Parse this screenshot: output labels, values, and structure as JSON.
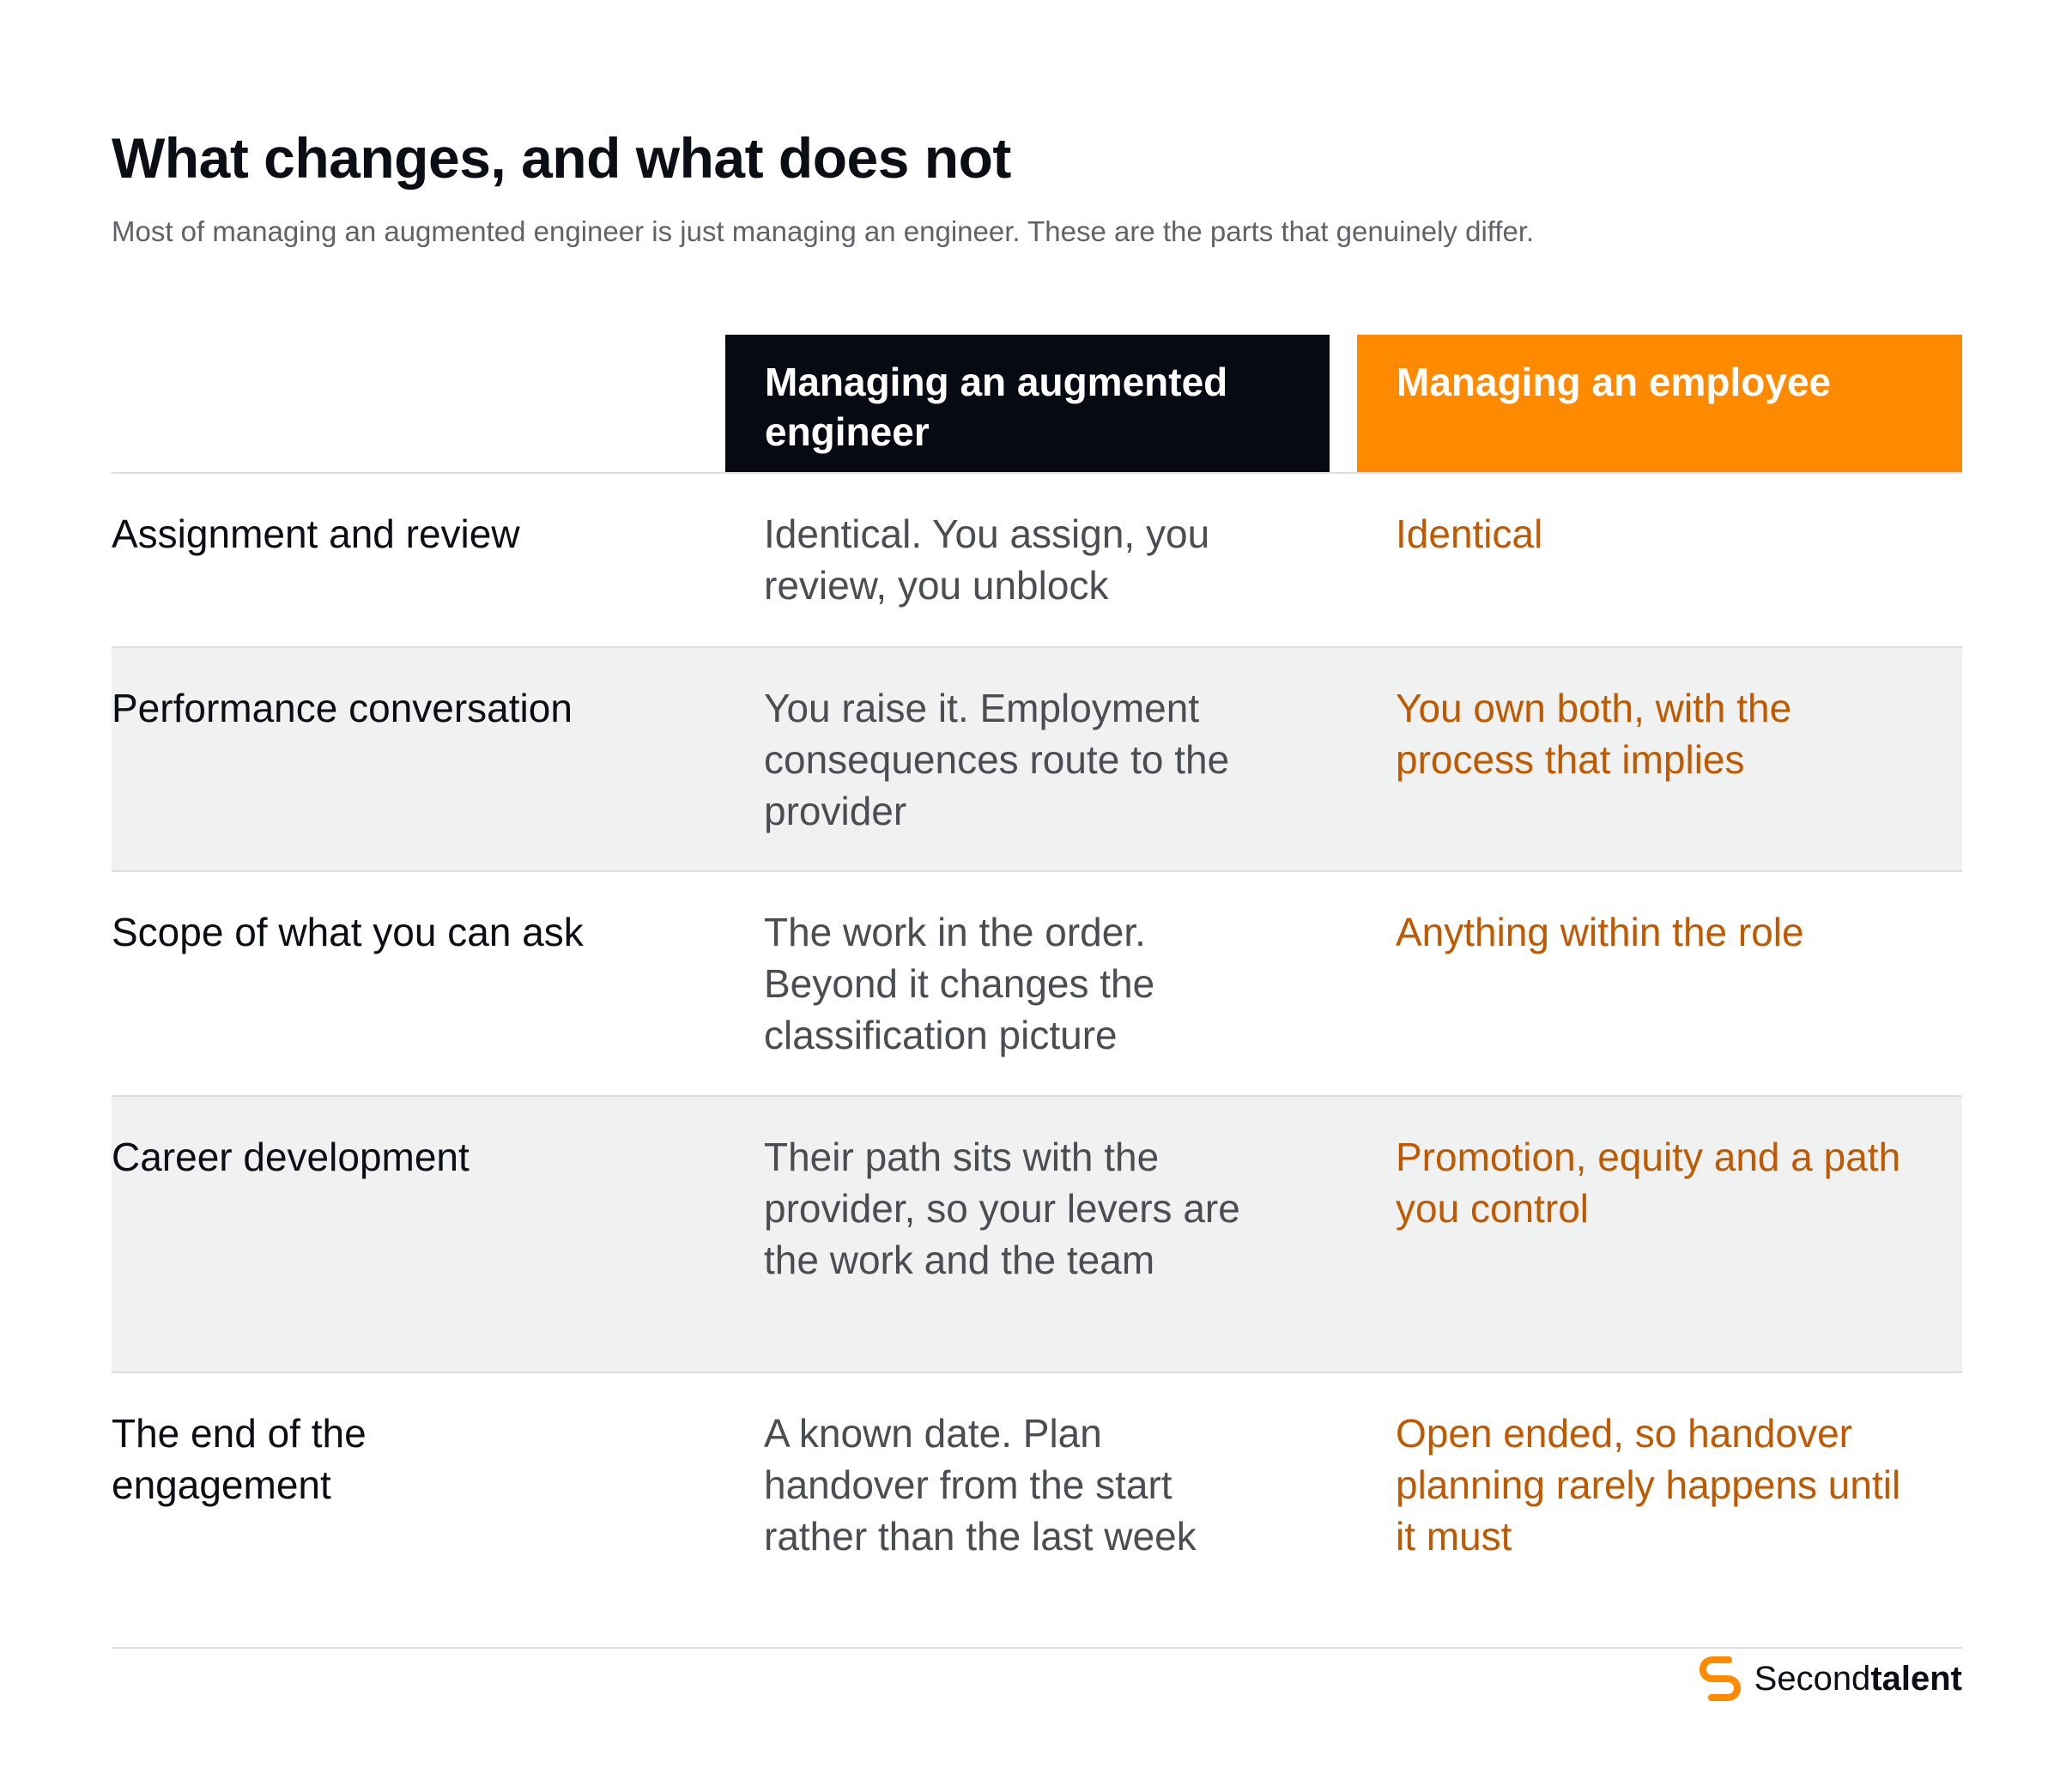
{
  "header": {
    "title": "What changes, and what does not",
    "subtitle": "Most of managing an augmented engineer is just managing an engineer. These are the parts that genuinely differ."
  },
  "table": {
    "columns": [
      "",
      "Managing an augmented engineer",
      "Managing an employee"
    ],
    "rows": [
      {
        "label": "Assignment and review",
        "augmented": "Identical. You assign, you review, you unblock",
        "employee": "Identical"
      },
      {
        "label": "Performance conversation",
        "augmented": "You raise it. Employment consequences route to the provider",
        "employee": "You own both, with the process that implies"
      },
      {
        "label": "Scope of what you can ask",
        "augmented": "The work in the order. Beyond it changes the classification picture",
        "employee": "Anything within the role"
      },
      {
        "label": "Career development",
        "augmented": "Their path sits with the provider, so your levers are the work and the team",
        "employee": "Promotion, equity and a path you control"
      },
      {
        "label": "The end of the engagement",
        "augmented": "A known date. Plan handover from the start rather than the last week",
        "employee": "Open ended, so handover planning rarely happens until it must"
      }
    ]
  },
  "brand": {
    "name_light": "Second",
    "name_bold": "talent",
    "icon": "secondtalent-logo-icon",
    "accent_color": "#ff8a00"
  },
  "colors": {
    "dark_header": "#070a12",
    "orange_header": "#ff8a00",
    "employee_text": "#bf5a00",
    "augmented_text": "#4a4d52",
    "shaded_row": "#f0f1f1"
  }
}
